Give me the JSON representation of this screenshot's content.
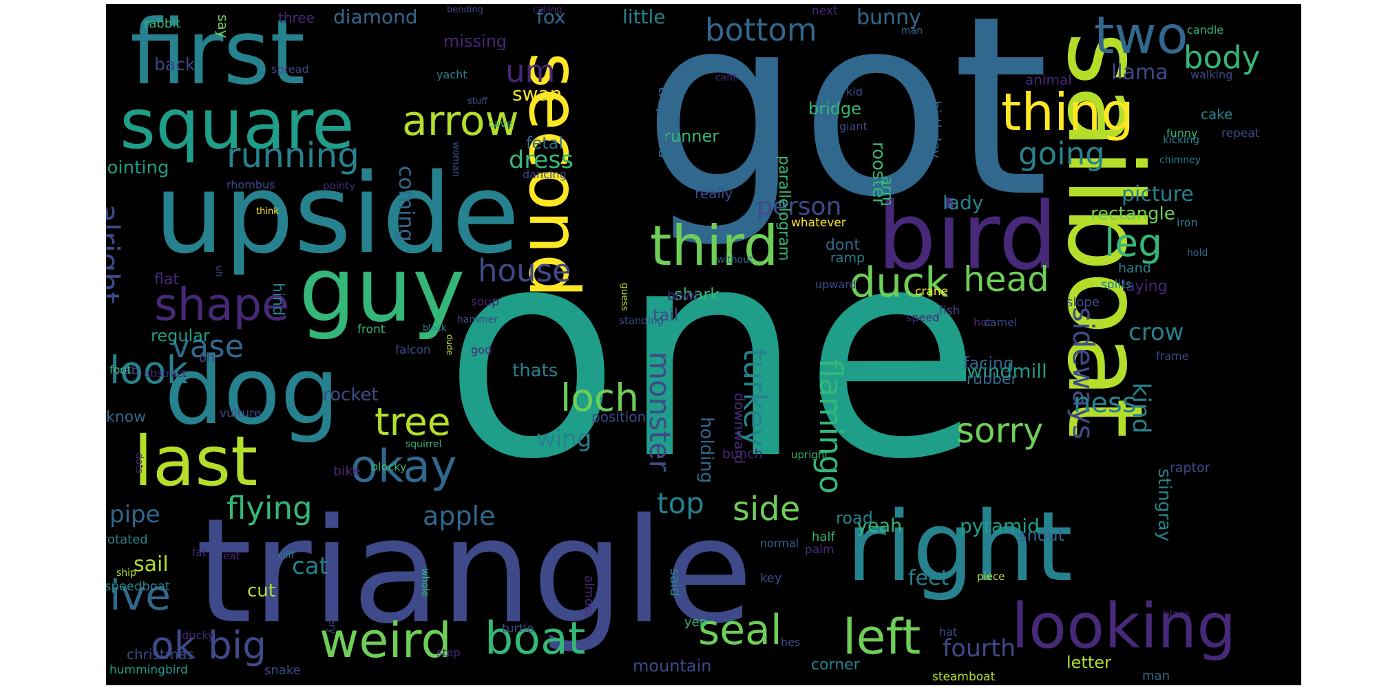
{
  "background_color": "#000000",
  "palette": [
    "#440154",
    "#482878",
    "#3e4a89",
    "#31688e",
    "#26828e",
    "#1f9e89",
    "#35b779",
    "#6ece58",
    "#b5de2b",
    "#fde725"
  ],
  "words": [
    {
      "text": "one",
      "color": "#1f9e89"
    },
    {
      "text": "got",
      "color": "#31688e"
    },
    {
      "text": "triangle",
      "color": "#3e4a89"
    },
    {
      "text": "sailboat",
      "color": "#b5de2b"
    },
    {
      "text": "upside",
      "color": "#26828e"
    },
    {
      "text": "right",
      "color": "#26828e"
    },
    {
      "text": "first",
      "color": "#26828e"
    },
    {
      "text": "bird",
      "color": "#482878"
    },
    {
      "text": "dog",
      "color": "#26828e"
    },
    {
      "text": "guy",
      "color": "#35b779"
    },
    {
      "text": "second",
      "color": "#fde725"
    },
    {
      "text": "square",
      "color": "#1f9e89"
    },
    {
      "text": "last",
      "color": "#b5de2b"
    },
    {
      "text": "looking",
      "color": "#482878"
    },
    {
      "text": "weird",
      "color": "#6ece58"
    },
    {
      "text": "two",
      "color": "#31688e"
    },
    {
      "text": "third",
      "color": "#6ece58"
    },
    {
      "text": "thing",
      "color": "#fde725"
    },
    {
      "text": "boat",
      "color": "#35b779"
    },
    {
      "text": "left",
      "color": "#6ece58"
    },
    {
      "text": "okay",
      "color": "#31688e"
    },
    {
      "text": "shape",
      "color": "#482878"
    },
    {
      "text": "seal",
      "color": "#6ece58"
    },
    {
      "text": "duck",
      "color": "#6ece58"
    },
    {
      "text": "ok big",
      "color": "#3e4a89"
    },
    {
      "text": "arrow",
      "color": "#b5de2b"
    },
    {
      "text": "ive",
      "color": "#31688e"
    },
    {
      "text": "look",
      "color": "#26828e"
    },
    {
      "text": "loch",
      "color": "#6ece58"
    },
    {
      "text": "bottom",
      "color": "#31688e"
    },
    {
      "text": "body",
      "color": "#35b779"
    },
    {
      "text": "running",
      "color": "#26828e"
    },
    {
      "text": "house",
      "color": "#3e4a89"
    },
    {
      "text": "leg",
      "color": "#35b779"
    },
    {
      "text": "head",
      "color": "#6ece58"
    },
    {
      "text": "alright",
      "color": "#3e4a89"
    },
    {
      "text": "tree",
      "color": "#b5de2b"
    },
    {
      "text": "flying",
      "color": "#35b779"
    },
    {
      "text": "vase",
      "color": "#31688e"
    },
    {
      "text": "sorry",
      "color": "#6ece58"
    },
    {
      "text": "side",
      "color": "#6ece58"
    },
    {
      "text": "going",
      "color": "#26828e"
    },
    {
      "text": "flamingo",
      "color": "#35b779"
    },
    {
      "text": "turkey",
      "color": "#26828e"
    },
    {
      "text": "monster",
      "color": "#3e4a89"
    },
    {
      "text": "sideways",
      "color": "#3e4a89"
    },
    {
      "text": "ness",
      "color": "#26828e"
    },
    {
      "text": "um",
      "color": "#482878"
    },
    {
      "text": "apple",
      "color": "#31688e"
    },
    {
      "text": "fourth",
      "color": "#3e4a89"
    },
    {
      "text": "person",
      "color": "#3e4a89"
    },
    {
      "text": "top",
      "color": "#26828e"
    },
    {
      "text": "pipe",
      "color": "#31688e"
    },
    {
      "text": "cat",
      "color": "#26828e"
    },
    {
      "text": "wing",
      "color": "#26828e"
    },
    {
      "text": "kind",
      "color": "#26828e"
    },
    {
      "text": "dress",
      "color": "#35b779"
    },
    {
      "text": "crow",
      "color": "#26828e"
    },
    {
      "text": "coming",
      "color": "#31688e"
    },
    {
      "text": "llama",
      "color": "#3e4a89"
    },
    {
      "text": "feet",
      "color": "#26828e"
    },
    {
      "text": "rectangle",
      "color": "#6ece58"
    },
    {
      "text": "picture",
      "color": "#26828e"
    },
    {
      "text": "lady",
      "color": "#26828e"
    },
    {
      "text": "windmill",
      "color": "#1f9e89"
    },
    {
      "text": "yeah",
      "color": "#35b779"
    },
    {
      "text": "holding",
      "color": "#31688e"
    },
    {
      "text": "pyramid",
      "color": "#1f9e89"
    },
    {
      "text": "stingray",
      "color": "#26828e"
    },
    {
      "text": "sail",
      "color": "#b5de2b"
    },
    {
      "text": "swan",
      "color": "#fde725"
    },
    {
      "text": "little",
      "color": "#26828e"
    },
    {
      "text": "fox",
      "color": "#31688e"
    },
    {
      "text": "bunny",
      "color": "#31688e"
    },
    {
      "text": "diamond",
      "color": "#31688e"
    },
    {
      "text": "rocket",
      "color": "#3e4a89"
    },
    {
      "text": "pointing",
      "color": "#1f9e89"
    },
    {
      "text": "missing",
      "color": "#482878"
    },
    {
      "text": "back",
      "color": "#3e4a89"
    },
    {
      "text": "bridge",
      "color": "#35b779"
    },
    {
      "text": "rooster",
      "color": "#35b779"
    },
    {
      "text": "arm",
      "color": "#35b779"
    },
    {
      "text": "runner",
      "color": "#35b779"
    },
    {
      "text": "fetal",
      "color": "#31688e"
    },
    {
      "text": "thats",
      "color": "#26828e"
    },
    {
      "text": "regular",
      "color": "#1f9e89"
    },
    {
      "text": "shark",
      "color": "#35b779"
    },
    {
      "text": "road",
      "color": "#26828e"
    },
    {
      "text": "tail",
      "color": "#3e4a89"
    },
    {
      "text": "cut",
      "color": "#b5de2b"
    },
    {
      "text": "facing",
      "color": "#31688e"
    },
    {
      "text": "rubber",
      "color": "#31688e"
    },
    {
      "text": "snout",
      "color": "#31688e"
    },
    {
      "text": "letter",
      "color": "#b5de2b"
    },
    {
      "text": "mountain",
      "color": "#3e4a89"
    },
    {
      "text": "corner",
      "color": "#26828e"
    },
    {
      "text": "laying",
      "color": "#482878"
    },
    {
      "text": "parallelogram",
      "color": "#35b779"
    },
    {
      "text": "trapezoid",
      "color": "#31688e"
    },
    {
      "text": "animal",
      "color": "#482878"
    },
    {
      "text": "birthday",
      "color": "#31688e"
    },
    {
      "text": "know",
      "color": "#31688e"
    },
    {
      "text": "dont",
      "color": "#31688e"
    },
    {
      "text": "position",
      "color": "#3e4a89"
    },
    {
      "text": "really",
      "color": "#3e4a89"
    },
    {
      "text": "downward",
      "color": "#482878"
    },
    {
      "text": "three",
      "color": "#482878"
    },
    {
      "text": "say",
      "color": "#6ece58"
    },
    {
      "text": "cake",
      "color": "#26828e"
    },
    {
      "text": "next",
      "color": "#482878"
    },
    {
      "text": "candle",
      "color": "#35b779"
    },
    {
      "text": "walking",
      "color": "#3e4a89"
    },
    {
      "text": "repeat",
      "color": "#3e4a89"
    },
    {
      "text": "funny",
      "color": "#35b779"
    },
    {
      "text": "kicking",
      "color": "#26828e"
    },
    {
      "text": "rabbit",
      "color": "#35b779"
    },
    {
      "text": "spread",
      "color": "#3e4a89"
    },
    {
      "text": "yacht",
      "color": "#26828e"
    },
    {
      "text": "stuff",
      "color": "#3e4a89"
    },
    {
      "text": "bending",
      "color": "#3e4a89"
    },
    {
      "text": "calling",
      "color": "#482878"
    },
    {
      "text": "man",
      "color": "#31688e"
    },
    {
      "text": "kid",
      "color": "#3e4a89"
    },
    {
      "text": "giant",
      "color": "#3e4a89"
    },
    {
      "text": "cave",
      "color": "#35b779"
    },
    {
      "text": "woman",
      "color": "#3e4a89"
    },
    {
      "text": "dancing",
      "color": "#3e4a89"
    },
    {
      "text": "chimney",
      "color": "#26828e"
    },
    {
      "text": "iron",
      "color": "#26828e"
    },
    {
      "text": "hold",
      "color": "#31688e"
    },
    {
      "text": "whatever",
      "color": "#fde725"
    },
    {
      "text": "without",
      "color": "#31688e"
    },
    {
      "text": "ramp",
      "color": "#26828e"
    },
    {
      "text": "upward",
      "color": "#3e4a89"
    },
    {
      "text": "splits",
      "color": "#26828e"
    },
    {
      "text": "hand",
      "color": "#26828e"
    },
    {
      "text": "slope",
      "color": "#3e4a89"
    },
    {
      "text": "fish",
      "color": "#3e4a89"
    },
    {
      "text": "hot",
      "color": "#482878"
    },
    {
      "text": "speed",
      "color": "#482878"
    },
    {
      "text": "camel",
      "color": "#3e4a89"
    },
    {
      "text": "crane",
      "color": "#fde725"
    },
    {
      "text": "frame",
      "color": "#3e4a89"
    },
    {
      "text": "rhombus",
      "color": "#3e4a89"
    },
    {
      "text": "pointy",
      "color": "#482878"
    },
    {
      "text": "think",
      "color": "#fde725"
    },
    {
      "text": "flat",
      "color": "#482878"
    },
    {
      "text": "uh",
      "color": "#3e4a89"
    },
    {
      "text": "hind",
      "color": "#26828e"
    },
    {
      "text": "bowl",
      "color": "#482878"
    },
    {
      "text": "soup",
      "color": "#482878"
    },
    {
      "text": "hammer",
      "color": "#3e4a89"
    },
    {
      "text": "standing",
      "color": "#3e4a89"
    },
    {
      "text": "guess",
      "color": "#b5de2b"
    },
    {
      "text": "front",
      "color": "#35b779"
    },
    {
      "text": "falcon",
      "color": "#3e4a89"
    },
    {
      "text": "god",
      "color": "#482878"
    },
    {
      "text": "block",
      "color": "#26828e"
    },
    {
      "text": "abstract",
      "color": "#482878"
    },
    {
      "text": "oh",
      "color": "#3e4a89"
    },
    {
      "text": "crab",
      "color": "#3e4a89"
    },
    {
      "text": "foot",
      "color": "#35b779"
    },
    {
      "text": "vulture",
      "color": "#3e4a89"
    },
    {
      "text": "squirrel",
      "color": "#35b779"
    },
    {
      "text": "bike",
      "color": "#482878"
    },
    {
      "text": "blocky",
      "color": "#35b779"
    },
    {
      "text": "dots",
      "color": "#482878"
    },
    {
      "text": "dude",
      "color": "#b5de2b"
    },
    {
      "text": "bunch",
      "color": "#482878"
    },
    {
      "text": "upright",
      "color": "#35b779"
    },
    {
      "text": "raptor",
      "color": "#3e4a89"
    },
    {
      "text": "rotated",
      "color": "#26828e"
    },
    {
      "text": "fat",
      "color": "#482878"
    },
    {
      "text": "eat",
      "color": "#482878"
    },
    {
      "text": "cliff",
      "color": "#26828e"
    },
    {
      "text": "half",
      "color": "#35b779"
    },
    {
      "text": "normal",
      "color": "#31688e"
    },
    {
      "text": "palm",
      "color": "#482878"
    },
    {
      "text": "piece",
      "color": "#b5de2b"
    },
    {
      "text": "speedboat",
      "color": "#26828e"
    },
    {
      "text": "ship",
      "color": "#b5de2b"
    },
    {
      "text": "said",
      "color": "#26828e"
    },
    {
      "text": "yep",
      "color": "#35b779"
    },
    {
      "text": "key",
      "color": "#3e4a89"
    },
    {
      "text": "whole",
      "color": "#35b779"
    },
    {
      "text": "almost",
      "color": "#482878"
    },
    {
      "text": "im",
      "color": "#3e4a89"
    },
    {
      "text": "ducky",
      "color": "#482878"
    },
    {
      "text": "query",
      "color": "#3e4a89"
    },
    {
      "text": "turtle",
      "color": "#3e4a89"
    },
    {
      "text": "step",
      "color": "#482878"
    },
    {
      "text": "black",
      "color": "#482878"
    },
    {
      "text": "hat",
      "color": "#3e4a89"
    },
    {
      "text": "hes",
      "color": "#3e4a89"
    },
    {
      "text": "hummingbird",
      "color": "#1f9e89"
    },
    {
      "text": "christmas",
      "color": "#3e4a89"
    },
    {
      "text": "snake",
      "color": "#3e4a89"
    },
    {
      "text": "steamboat",
      "color": "#b5de2b"
    },
    {
      "text": "man",
      "color": "#31688e"
    },
    {
      "text": "cant",
      "color": "#482878"
    }
  ]
}
